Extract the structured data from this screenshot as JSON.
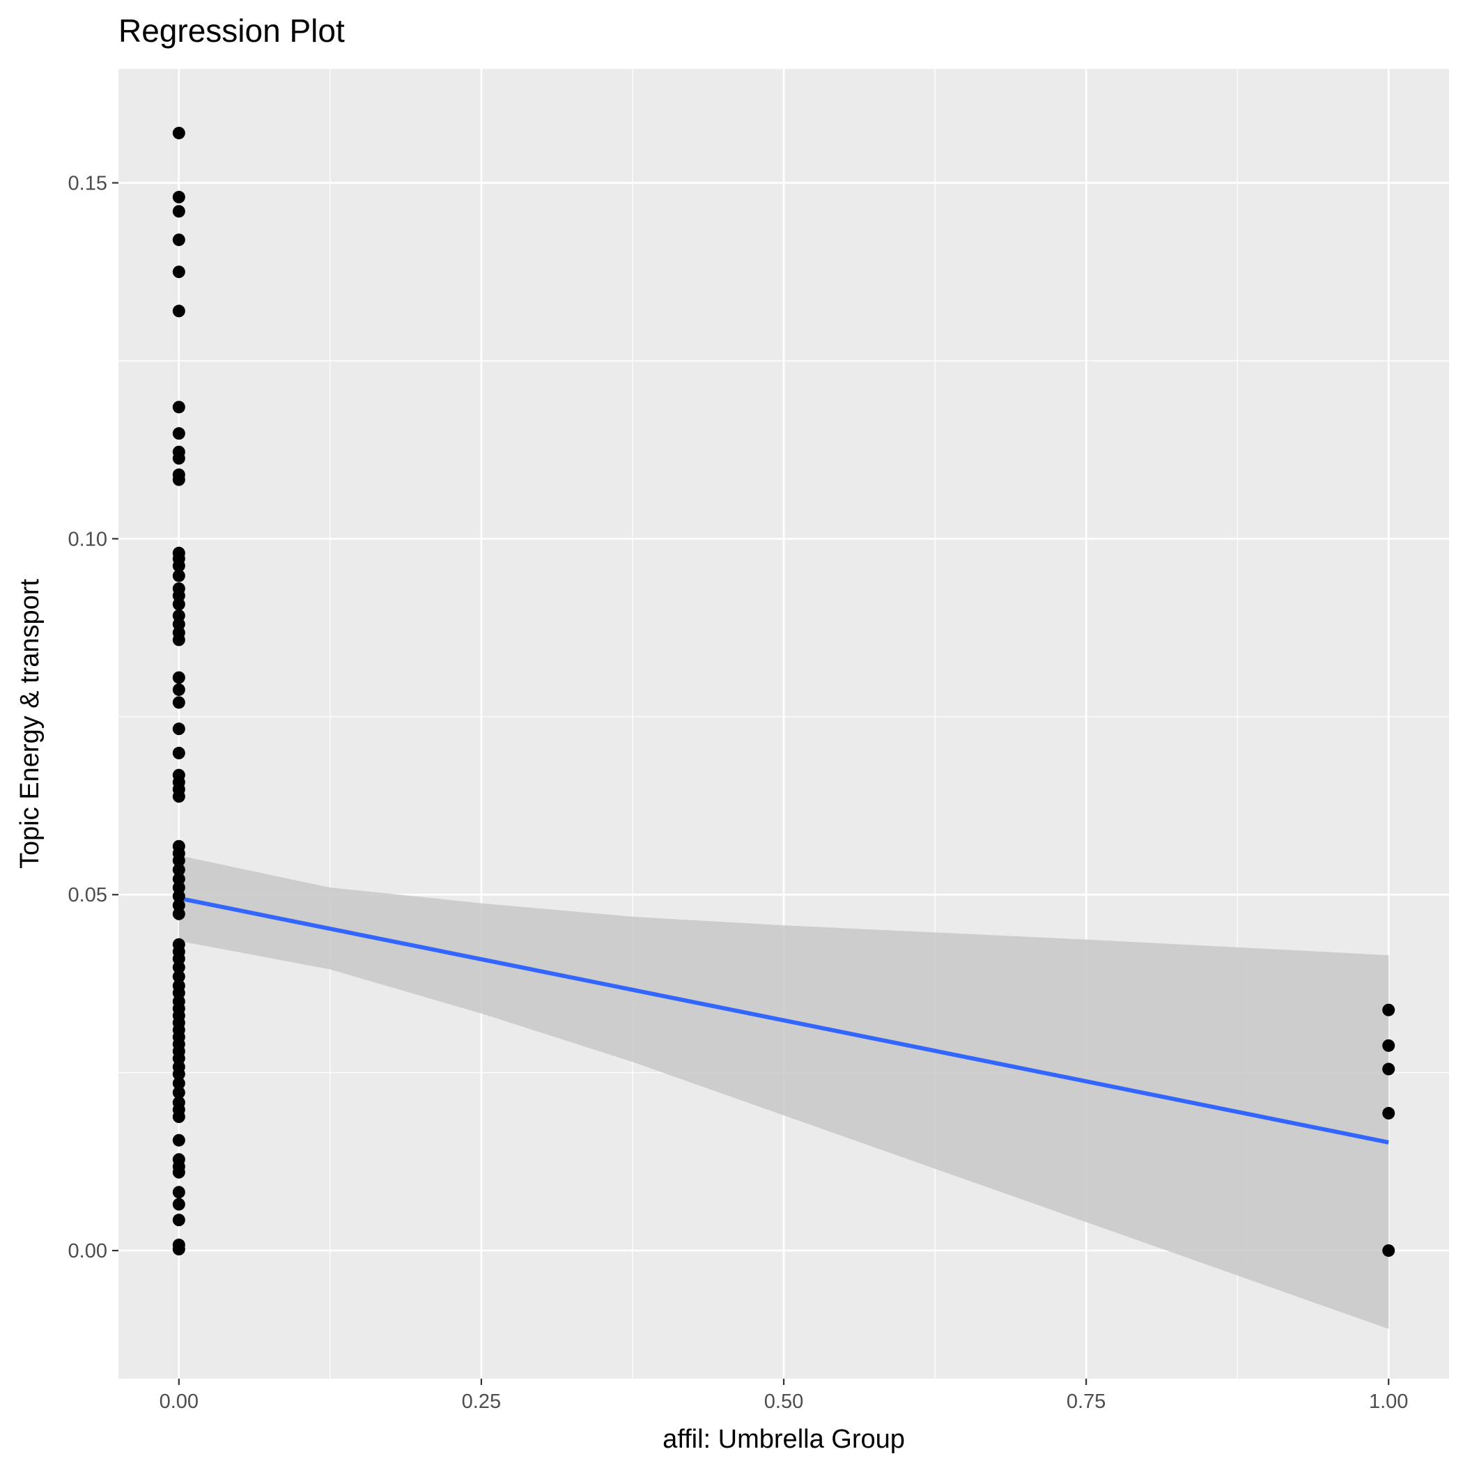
{
  "chart_data": {
    "type": "scatter",
    "title": "Regression Plot",
    "xlabel": "affil: Umbrella Group",
    "ylabel": "Topic Energy & transport",
    "xlim": [
      -0.05,
      1.05
    ],
    "ylim": [
      -0.018,
      0.166
    ],
    "x_ticks": [
      0.0,
      0.25,
      0.5,
      0.75,
      1.0
    ],
    "x_tick_labels": [
      "0.00",
      "0.25",
      "0.50",
      "0.75",
      "1.00"
    ],
    "y_ticks": [
      0.0,
      0.05,
      0.1,
      0.15
    ],
    "y_tick_labels": [
      "0.00",
      "0.05",
      "0.10",
      "0.15"
    ],
    "grid": true,
    "background": "#ebebeb",
    "point_color": "#000000",
    "line_color": "#3366ff",
    "band_color": "#c8c8c8",
    "points": [
      {
        "x": 0,
        "y": 0.157
      },
      {
        "x": 0,
        "y": 0.148
      },
      {
        "x": 0,
        "y": 0.146
      },
      {
        "x": 0,
        "y": 0.142
      },
      {
        "x": 0,
        "y": 0.1375
      },
      {
        "x": 0,
        "y": 0.132
      },
      {
        "x": 0,
        "y": 0.1185
      },
      {
        "x": 0,
        "y": 0.1148
      },
      {
        "x": 0,
        "y": 0.1122
      },
      {
        "x": 0,
        "y": 0.1113
      },
      {
        "x": 0,
        "y": 0.109
      },
      {
        "x": 0,
        "y": 0.1083
      },
      {
        "x": 0,
        "y": 0.098
      },
      {
        "x": 0,
        "y": 0.0972
      },
      {
        "x": 0,
        "y": 0.0962
      },
      {
        "x": 0,
        "y": 0.0948
      },
      {
        "x": 0,
        "y": 0.093
      },
      {
        "x": 0,
        "y": 0.092
      },
      {
        "x": 0,
        "y": 0.0908
      },
      {
        "x": 0,
        "y": 0.0892
      },
      {
        "x": 0,
        "y": 0.088
      },
      {
        "x": 0,
        "y": 0.0868
      },
      {
        "x": 0,
        "y": 0.0858
      },
      {
        "x": 0,
        "y": 0.0805
      },
      {
        "x": 0,
        "y": 0.0788
      },
      {
        "x": 0,
        "y": 0.077
      },
      {
        "x": 0,
        "y": 0.0733
      },
      {
        "x": 0,
        "y": 0.0699
      },
      {
        "x": 0,
        "y": 0.0668
      },
      {
        "x": 0,
        "y": 0.0658
      },
      {
        "x": 0,
        "y": 0.0648
      },
      {
        "x": 0,
        "y": 0.0638
      },
      {
        "x": 0,
        "y": 0.0568
      },
      {
        "x": 0,
        "y": 0.0558
      },
      {
        "x": 0,
        "y": 0.0548
      },
      {
        "x": 0,
        "y": 0.0535
      },
      {
        "x": 0,
        "y": 0.0522
      },
      {
        "x": 0,
        "y": 0.051
      },
      {
        "x": 0,
        "y": 0.0498
      },
      {
        "x": 0,
        "y": 0.0485
      },
      {
        "x": 0,
        "y": 0.0473
      },
      {
        "x": 0,
        "y": 0.043
      },
      {
        "x": 0,
        "y": 0.042
      },
      {
        "x": 0,
        "y": 0.041
      },
      {
        "x": 0,
        "y": 0.0398
      },
      {
        "x": 0,
        "y": 0.0385
      },
      {
        "x": 0,
        "y": 0.0372
      },
      {
        "x": 0,
        "y": 0.0362
      },
      {
        "x": 0,
        "y": 0.035
      },
      {
        "x": 0,
        "y": 0.034
      },
      {
        "x": 0,
        "y": 0.033
      },
      {
        "x": 0,
        "y": 0.032
      },
      {
        "x": 0,
        "y": 0.031
      },
      {
        "x": 0,
        "y": 0.03
      },
      {
        "x": 0,
        "y": 0.029
      },
      {
        "x": 0,
        "y": 0.028
      },
      {
        "x": 0,
        "y": 0.027
      },
      {
        "x": 0,
        "y": 0.0258
      },
      {
        "x": 0,
        "y": 0.0248
      },
      {
        "x": 0,
        "y": 0.0235
      },
      {
        "x": 0,
        "y": 0.0222
      },
      {
        "x": 0,
        "y": 0.0208
      },
      {
        "x": 0,
        "y": 0.0198
      },
      {
        "x": 0,
        "y": 0.0188
      },
      {
        "x": 0,
        "y": 0.0155
      },
      {
        "x": 0,
        "y": 0.0128
      },
      {
        "x": 0,
        "y": 0.0118
      },
      {
        "x": 0,
        "y": 0.011
      },
      {
        "x": 0,
        "y": 0.0082
      },
      {
        "x": 0,
        "y": 0.0065
      },
      {
        "x": 0,
        "y": 0.0043
      },
      {
        "x": 0,
        "y": 0.0008
      },
      {
        "x": 0,
        "y": 0.0002
      },
      {
        "x": 1,
        "y": 0.0338
      },
      {
        "x": 1,
        "y": 0.0288
      },
      {
        "x": 1,
        "y": 0.0255
      },
      {
        "x": 1,
        "y": 0.0193
      },
      {
        "x": 1,
        "y": 0.0
      }
    ],
    "regression": {
      "x": [
        0,
        1
      ],
      "fit": [
        0.0495,
        0.0152
      ],
      "ci_x": [
        0,
        0.125,
        0.25,
        0.375,
        0.5,
        0.625,
        0.75,
        0.875,
        1.0
      ],
      "ci_lower": [
        0.0435,
        0.0395,
        0.0333,
        0.0265,
        0.019,
        0.0115,
        0.004,
        -0.0035,
        -0.011
      ],
      "ci_upper": [
        0.0555,
        0.051,
        0.0488,
        0.0469,
        0.0457,
        0.0447,
        0.0437,
        0.0426,
        0.0415
      ]
    }
  }
}
